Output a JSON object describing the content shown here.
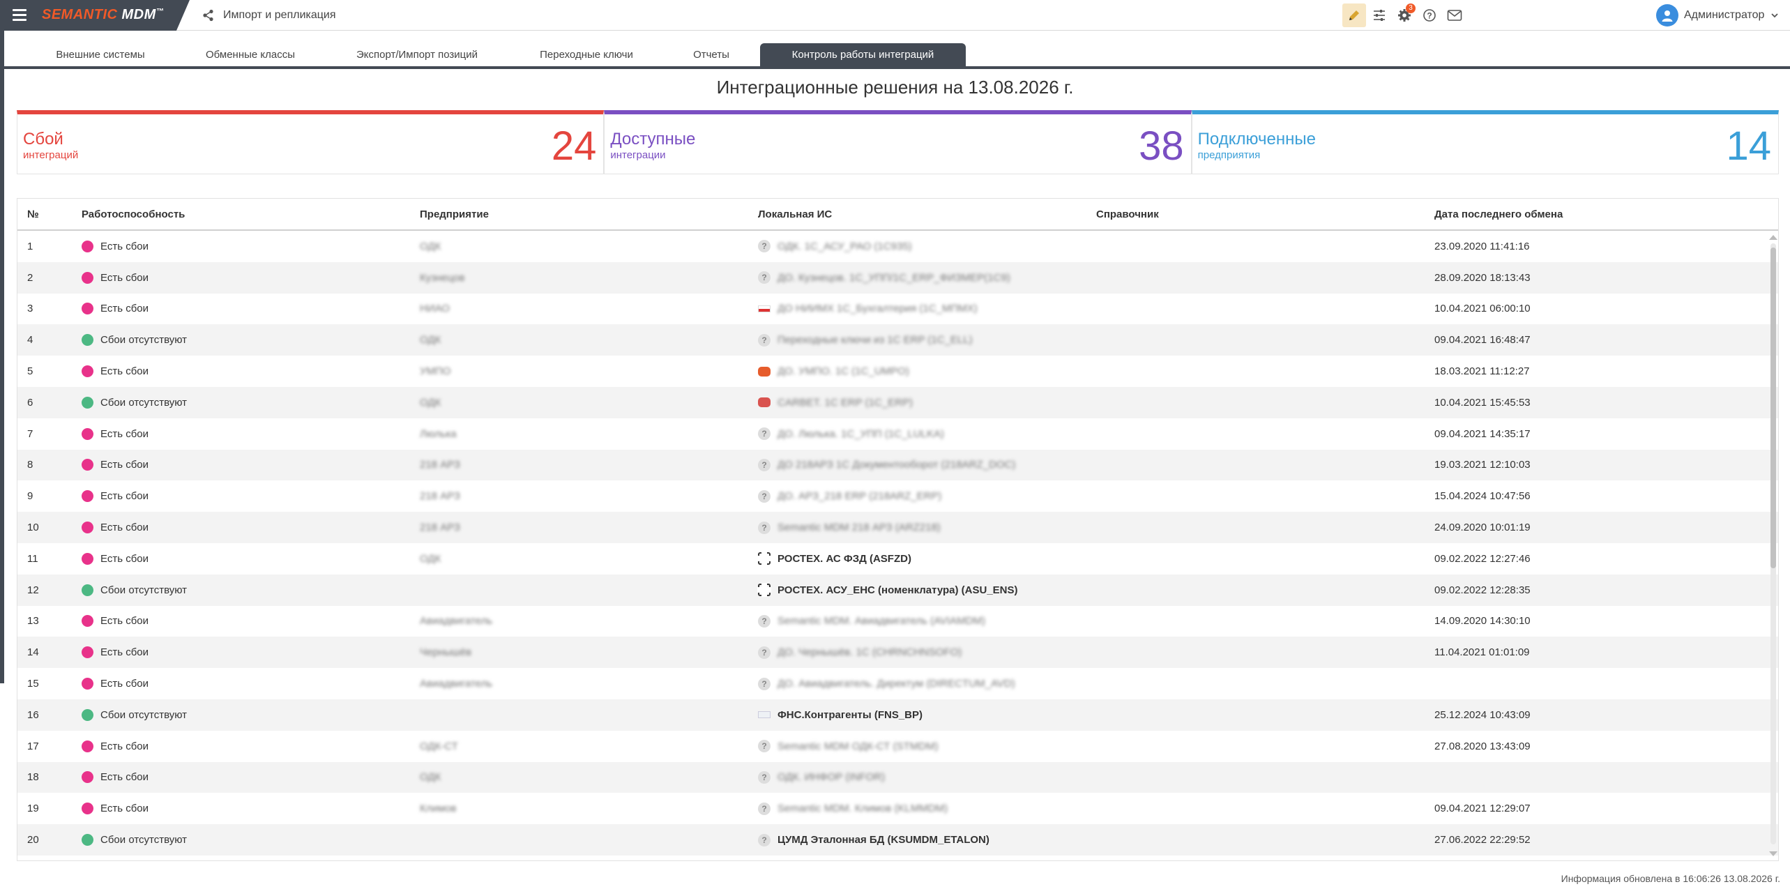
{
  "app": {
    "logo_part1": "SEMANTIC",
    "logo_part2": " MDM",
    "logo_tm": "™",
    "breadcrumb": "Импорт и репликация",
    "user_name": "Администратор",
    "notifications_badge": "3",
    "icons": [
      "hamburger-icon",
      "share-icon",
      "pencil-icon",
      "sliders-icon",
      "gear-icon",
      "help-icon",
      "mail-icon",
      "user-icon",
      "chevron-down-icon"
    ]
  },
  "tabs": [
    {
      "label": "Внешние системы",
      "active": false
    },
    {
      "label": "Обменные классы",
      "active": false
    },
    {
      "label": "Экспорт/Импорт позиций",
      "active": false
    },
    {
      "label": "Переходные ключи",
      "active": false
    },
    {
      "label": "Отчеты",
      "active": false
    },
    {
      "label": "Контроль работы интеграций",
      "active": true
    }
  ],
  "page_title": "Интеграционные решения на 13.08.2026 г.",
  "cards": [
    {
      "title": "Сбой",
      "subtitle": "интеграций",
      "value": "24",
      "color": "#e4453e"
    },
    {
      "title": "Доступные",
      "subtitle": "интеграции",
      "value": "38",
      "color": "#7a4fc2"
    },
    {
      "title": "Подключенные",
      "subtitle": "предприятия",
      "value": "14",
      "color": "#3b9fd8"
    }
  ],
  "table": {
    "headers": [
      "№",
      "Работоспособность",
      "Предприятие",
      "Локальная ИС",
      "Справочник",
      "Дата последнего обмена"
    ],
    "status_colors": {
      "fail": "#e8328a",
      "ok": "#4cb883"
    },
    "rows": [
      {
        "num": "1",
        "status": "Есть сбои",
        "type": "fail",
        "enterprise": "ОДК",
        "icon": "q",
        "system": "ОДК. 1С_АСУ_РАО (1С935)",
        "blur": true,
        "date": "23.09.2020 11:41:16"
      },
      {
        "num": "2",
        "status": "Есть сбои",
        "type": "fail",
        "enterprise": "Кузнецов",
        "icon": "q",
        "system": "ДО. Кузнецов. 1С_УПП/1С_ERP_ФИЗМЕР(1С9)",
        "blur": true,
        "date": "28.09.2020 18:13:43"
      },
      {
        "num": "3",
        "status": "Есть сбои",
        "type": "fail",
        "enterprise": "НИАО",
        "icon": "flag",
        "system": "ДО НИИМХ 1С_Бухгалтерия (1С_МПМХ)",
        "blur": true,
        "date": "10.04.2021 06:00:10"
      },
      {
        "num": "4",
        "status": "Сбои отсутствуют",
        "type": "ok",
        "enterprise": "ОДК",
        "icon": "q",
        "system": "Переходные ключи из 1С ERP (1С_ЕLL)",
        "blur": true,
        "date": "09.04.2021 16:48:47"
      },
      {
        "num": "5",
        "status": "Есть сбои",
        "type": "fail",
        "enterprise": "УМПО",
        "icon": "1c",
        "system": "ДО. УМПО. 1С (1С_UMPO)",
        "blur": true,
        "date": "18.03.2021 11:12:27"
      },
      {
        "num": "6",
        "status": "Сбои отсутствуют",
        "type": "ok",
        "enterprise": "ОДК",
        "icon": "1c2",
        "system": "CARBET. 1С ERP (1С_ERP)",
        "blur": true,
        "date": "10.04.2021 15:45:53"
      },
      {
        "num": "7",
        "status": "Есть сбои",
        "type": "fail",
        "enterprise": "Люлька",
        "icon": "q",
        "system": "ДО. Люлька. 1С_УПП (1С_LULKA)",
        "blur": true,
        "date": "09.04.2021 14:35:17"
      },
      {
        "num": "8",
        "status": "Есть сбои",
        "type": "fail",
        "enterprise": "218 АРЗ",
        "icon": "q",
        "system": "ДО 218АРЗ 1С Документооборот (218ARZ_DOC)",
        "blur": true,
        "date": "19.03.2021 12:10:03"
      },
      {
        "num": "9",
        "status": "Есть сбои",
        "type": "fail",
        "enterprise": "218 АРЗ",
        "icon": "q",
        "system": "ДО. АРЗ_218 ERP (218ARZ_ERP)",
        "blur": true,
        "date": "15.04.2024 10:47:56"
      },
      {
        "num": "10",
        "status": "Есть сбои",
        "type": "fail",
        "enterprise": "218 АРЗ",
        "icon": "q",
        "system": "Semantic MDM 218 АРЗ (ARZ218)",
        "blur": true,
        "date": "24.09.2020 10:01:19"
      },
      {
        "num": "11",
        "status": "Есть сбои",
        "type": "fail",
        "enterprise": "ОДК",
        "icon": "corner",
        "system": "РОСТЕХ. АС ФЗД (ASFZD)",
        "blur": false,
        "date": "09.02.2022 12:27:46"
      },
      {
        "num": "12",
        "status": "Сбои отсутствуют",
        "type": "ok",
        "enterprise": "",
        "icon": "corner",
        "system": "РОСТЕХ. АСУ_ЕНС (номенклатура) (ASU_ENS)",
        "blur": false,
        "date": "09.02.2022 12:28:35"
      },
      {
        "num": "13",
        "status": "Есть сбои",
        "type": "fail",
        "enterprise": "Авиадвигатель",
        "icon": "q",
        "system": "Semantic MDM. Авиадвигатель (AVIAMDM)",
        "blur": true,
        "date": "14.09.2020 14:30:10"
      },
      {
        "num": "14",
        "status": "Есть сбои",
        "type": "fail",
        "enterprise": "Чернышёв",
        "icon": "q",
        "system": "ДО. Чернышёв. 1С (CHRNCHNSOFO)",
        "blur": true,
        "date": "11.04.2021 01:01:09"
      },
      {
        "num": "15",
        "status": "Есть сбои",
        "type": "fail",
        "enterprise": "Авиадвигатель",
        "icon": "q",
        "system": "ДО. Авиадвигатель. Директум (DIRECTUM_AVD)",
        "blur": true,
        "date": ""
      },
      {
        "num": "16",
        "status": "Сбои отсутствуют",
        "type": "ok",
        "enterprise": "",
        "icon": "fns",
        "system": "ФНС.Контрагенты (FNS_BP)",
        "blur": false,
        "date": "25.12.2024 10:43:09"
      },
      {
        "num": "17",
        "status": "Есть сбои",
        "type": "fail",
        "enterprise": "ОДК-СТ",
        "icon": "q",
        "system": "Semantic MDM ОДК-СТ (STMDM)",
        "blur": true,
        "date": "27.08.2020 13:43:09"
      },
      {
        "num": "18",
        "status": "Есть сбои",
        "type": "fail",
        "enterprise": "ОДК",
        "icon": "q",
        "system": "ОДК. ИНФОР (INFOR)",
        "blur": true,
        "date": ""
      },
      {
        "num": "19",
        "status": "Есть сбои",
        "type": "fail",
        "enterprise": "Климов",
        "icon": "q",
        "system": "Semantic MDM. Климов (KLMMDM)",
        "blur": true,
        "date": "09.04.2021 12:29:07"
      },
      {
        "num": "20",
        "status": "Сбои отсутствуют",
        "type": "ok",
        "enterprise": "",
        "icon": "q",
        "system": "ЦУМД Эталонная БД (KSUMDM_ETALON)",
        "blur": false,
        "date": "27.06.2022 22:29:52"
      }
    ]
  },
  "footer": "Информация обновлена в 16:06:26 13.08.2026 г."
}
